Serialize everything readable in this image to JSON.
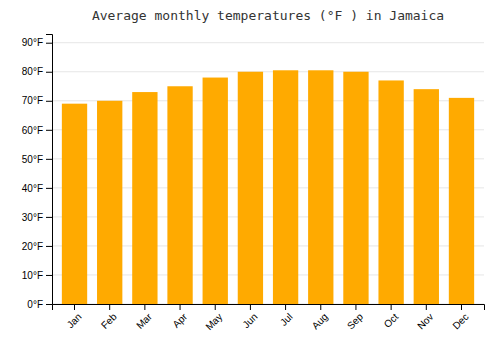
{
  "chart_data": {
    "type": "bar",
    "title": "Average monthly temperatures (°F ) in Jamaica",
    "categories": [
      "Jan",
      "Feb",
      "Mar",
      "Apr",
      "May",
      "Jun",
      "Jul",
      "Aug",
      "Sep",
      "Oct",
      "Nov",
      "Dec"
    ],
    "values": [
      69,
      70,
      73,
      75,
      78,
      80,
      80.5,
      80.5,
      80,
      77,
      74,
      71
    ],
    "color": "#FFAA00",
    "ylim": [
      0,
      93
    ],
    "yticks": [
      {
        "value": 0,
        "label": "0°F"
      },
      {
        "value": 10,
        "label": "10°F"
      },
      {
        "value": 20,
        "label": "20°F"
      },
      {
        "value": 30,
        "label": "30°F"
      },
      {
        "value": 40,
        "label": "40°F"
      },
      {
        "value": 50,
        "label": "50°F"
      },
      {
        "value": 60,
        "label": "60°F"
      },
      {
        "value": 70,
        "label": "70°F"
      },
      {
        "value": 80,
        "label": "80°F"
      },
      {
        "value": 90,
        "label": "90°F"
      }
    ],
    "grid": true
  }
}
